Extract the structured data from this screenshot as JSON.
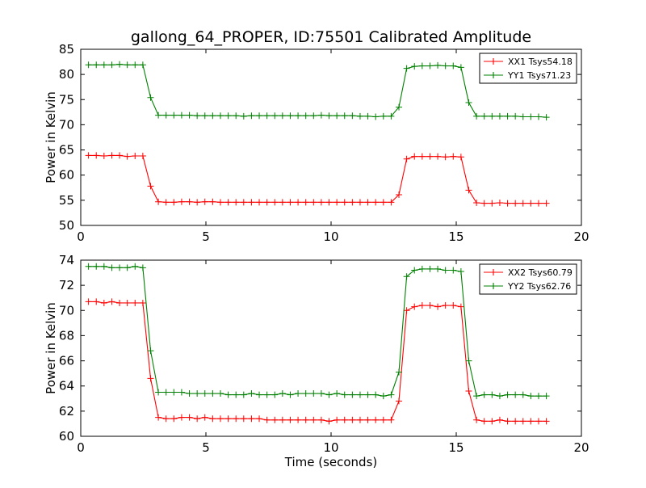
{
  "chart_data": [
    {
      "type": "line",
      "title": "gallong_64_PROPER, ID:75501 Calibrated Amplitude",
      "xlabel": "",
      "ylabel": "Power in Kelvin",
      "xlim": [
        0,
        20
      ],
      "ylim": [
        50,
        85
      ],
      "xticks": [
        "0",
        "5",
        "10",
        "15",
        "20"
      ],
      "yticks": [
        "50",
        "55",
        "60",
        "65",
        "70",
        "75",
        "80",
        "85"
      ],
      "grid": false,
      "legend_position": "top-right",
      "x": [
        0.31,
        0.62,
        0.93,
        1.24,
        1.55,
        1.86,
        2.17,
        2.48,
        2.79,
        3.1,
        3.41,
        3.72,
        4.03,
        4.34,
        4.65,
        4.96,
        5.27,
        5.58,
        5.89,
        6.2,
        6.51,
        6.82,
        7.13,
        7.44,
        7.75,
        8.06,
        8.37,
        8.68,
        8.99,
        9.3,
        9.61,
        9.92,
        10.23,
        10.54,
        10.85,
        11.16,
        11.47,
        11.78,
        12.09,
        12.4,
        12.71,
        13.02,
        13.33,
        13.64,
        13.95,
        14.26,
        14.57,
        14.88,
        15.19,
        15.5,
        15.81,
        16.12,
        16.43,
        16.74,
        17.05,
        17.36,
        17.67,
        17.98,
        18.29,
        18.6
      ],
      "series": [
        {
          "name": "XX1 Tsys54.18",
          "color": "#ff0000",
          "values": [
            63.9,
            63.9,
            63.8,
            63.9,
            63.9,
            63.7,
            63.8,
            63.8,
            57.8,
            54.7,
            54.6,
            54.6,
            54.7,
            54.7,
            54.6,
            54.7,
            54.7,
            54.6,
            54.6,
            54.6,
            54.6,
            54.6,
            54.6,
            54.6,
            54.6,
            54.6,
            54.6,
            54.6,
            54.6,
            54.6,
            54.6,
            54.6,
            54.6,
            54.6,
            54.6,
            54.6,
            54.6,
            54.6,
            54.6,
            54.6,
            56.1,
            63.2,
            63.7,
            63.7,
            63.7,
            63.7,
            63.6,
            63.7,
            63.6,
            57.0,
            54.5,
            54.4,
            54.4,
            54.5,
            54.4,
            54.4,
            54.4,
            54.4,
            54.4,
            54.4
          ]
        },
        {
          "name": "YY1 Tsys71.23",
          "color": "#008000",
          "values": [
            81.9,
            81.9,
            81.9,
            81.9,
            82.0,
            81.9,
            81.9,
            81.9,
            75.4,
            71.9,
            71.9,
            71.9,
            71.9,
            71.9,
            71.8,
            71.8,
            71.8,
            71.8,
            71.8,
            71.8,
            71.7,
            71.8,
            71.8,
            71.8,
            71.8,
            71.8,
            71.8,
            71.8,
            71.8,
            71.8,
            71.9,
            71.8,
            71.8,
            71.8,
            71.8,
            71.7,
            71.7,
            71.6,
            71.7,
            71.7,
            73.5,
            81.2,
            81.6,
            81.7,
            81.7,
            81.8,
            81.7,
            81.7,
            81.4,
            74.4,
            71.7,
            71.7,
            71.7,
            71.7,
            71.7,
            71.7,
            71.6,
            71.6,
            71.6,
            71.5
          ]
        }
      ]
    },
    {
      "type": "line",
      "title": "",
      "xlabel": "Time (seconds)",
      "ylabel": "Power in Kelvin",
      "xlim": [
        0,
        20
      ],
      "ylim": [
        60,
        74
      ],
      "xticks": [
        "0",
        "5",
        "10",
        "15",
        "20"
      ],
      "yticks": [
        "60",
        "62",
        "64",
        "66",
        "68",
        "70",
        "72",
        "74"
      ],
      "grid": false,
      "legend_position": "top-right",
      "x": [
        0.31,
        0.62,
        0.93,
        1.24,
        1.55,
        1.86,
        2.17,
        2.48,
        2.79,
        3.1,
        3.41,
        3.72,
        4.03,
        4.34,
        4.65,
        4.96,
        5.27,
        5.58,
        5.89,
        6.2,
        6.51,
        6.82,
        7.13,
        7.44,
        7.75,
        8.06,
        8.37,
        8.68,
        8.99,
        9.3,
        9.61,
        9.92,
        10.23,
        10.54,
        10.85,
        11.16,
        11.47,
        11.78,
        12.09,
        12.4,
        12.71,
        13.02,
        13.33,
        13.64,
        13.95,
        14.26,
        14.57,
        14.88,
        15.19,
        15.5,
        15.81,
        16.12,
        16.43,
        16.74,
        17.05,
        17.36,
        17.67,
        17.98,
        18.29,
        18.6
      ],
      "series": [
        {
          "name": "XX2 Tsys60.79",
          "color": "#ff0000",
          "values": [
            70.7,
            70.7,
            70.6,
            70.7,
            70.6,
            70.6,
            70.6,
            70.6,
            64.6,
            61.5,
            61.4,
            61.4,
            61.5,
            61.5,
            61.4,
            61.5,
            61.4,
            61.4,
            61.4,
            61.4,
            61.4,
            61.4,
            61.4,
            61.3,
            61.3,
            61.3,
            61.3,
            61.3,
            61.3,
            61.3,
            61.3,
            61.2,
            61.3,
            61.3,
            61.3,
            61.3,
            61.3,
            61.3,
            61.3,
            61.3,
            62.8,
            70.0,
            70.3,
            70.4,
            70.4,
            70.3,
            70.4,
            70.4,
            70.3,
            63.6,
            61.3,
            61.2,
            61.2,
            61.3,
            61.2,
            61.2,
            61.2,
            61.2,
            61.2,
            61.2
          ]
        },
        {
          "name": "YY2 Tsys62.76",
          "color": "#008000",
          "values": [
            73.5,
            73.5,
            73.5,
            73.4,
            73.4,
            73.4,
            73.5,
            73.4,
            66.8,
            63.5,
            63.5,
            63.5,
            63.5,
            63.4,
            63.4,
            63.4,
            63.4,
            63.4,
            63.3,
            63.3,
            63.3,
            63.4,
            63.3,
            63.3,
            63.3,
            63.4,
            63.3,
            63.4,
            63.4,
            63.4,
            63.4,
            63.3,
            63.4,
            63.3,
            63.3,
            63.3,
            63.3,
            63.3,
            63.2,
            63.3,
            65.1,
            72.7,
            73.2,
            73.3,
            73.3,
            73.3,
            73.2,
            73.2,
            73.1,
            66.0,
            63.2,
            63.3,
            63.3,
            63.2,
            63.3,
            63.3,
            63.3,
            63.2,
            63.2,
            63.2
          ]
        }
      ]
    }
  ]
}
